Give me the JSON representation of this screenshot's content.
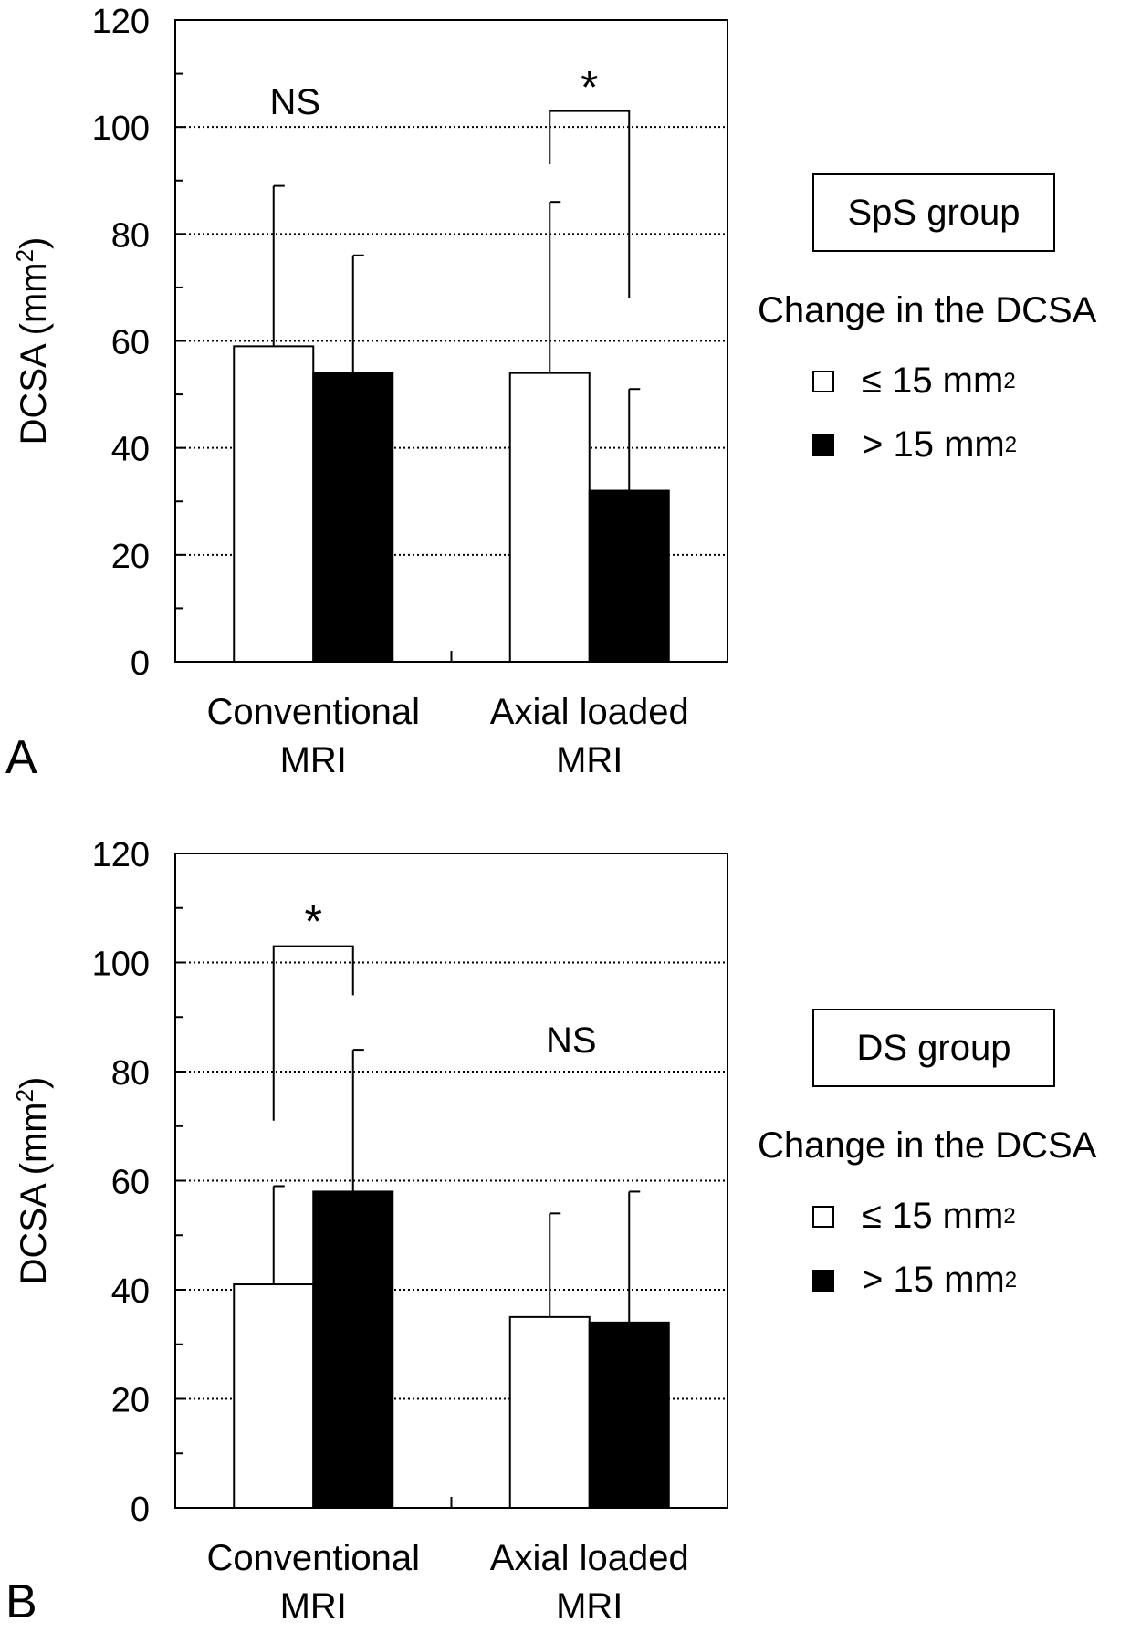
{
  "chart_data": [
    {
      "panel_label": "A",
      "type": "bar",
      "categories": [
        "Conventional MRI",
        "Axial loaded MRI"
      ],
      "category_lines": [
        [
          "Conventional",
          "MRI"
        ],
        [
          "Axial loaded",
          "MRI"
        ]
      ],
      "ylabel": "DCSA (mm²)",
      "ylabel_main": "DCSA (mm",
      "ylabel_sup": "2",
      "ylabel_end": ")",
      "ylim": [
        0,
        120
      ],
      "yticks": [
        0,
        20,
        40,
        60,
        80,
        100,
        120
      ],
      "grid": "dotted horizontal",
      "series": [
        {
          "name": "≤ 15 mm2",
          "color": "#ffffff",
          "values": [
            59,
            54
          ],
          "error": [
            30,
            32
          ]
        },
        {
          "name": "> 15 mm2",
          "color": "#000000",
          "values": [
            54,
            32
          ],
          "error": [
            22,
            19
          ]
        }
      ],
      "annotations": [
        {
          "category": 0,
          "text": "NS",
          "y": 105
        },
        {
          "category": 1,
          "text": "*",
          "y": 108,
          "bracket_y": 103,
          "left_end": 93,
          "right_end": 68
        }
      ],
      "legend": {
        "group": "SpS group",
        "title": "Change in the DCSA",
        "items": [
          {
            "label": "≤ 15 mm",
            "sup": "2",
            "color": "#ffffff"
          },
          {
            "label": "> 15 mm",
            "sup": "2",
            "color": "#000000"
          }
        ],
        "placement": "right"
      }
    },
    {
      "panel_label": "B",
      "type": "bar",
      "categories": [
        "Conventional MRI",
        "Axial loaded MRI"
      ],
      "category_lines": [
        [
          "Conventional",
          "MRI"
        ],
        [
          "Axial loaded",
          "MRI"
        ]
      ],
      "ylabel": "DCSA (mm²)",
      "ylabel_main": "DCSA (mm",
      "ylabel_sup": "2",
      "ylabel_end": ")",
      "ylim": [
        0,
        120
      ],
      "yticks": [
        0,
        20,
        40,
        60,
        80,
        100,
        120
      ],
      "grid": "dotted horizontal",
      "series": [
        {
          "name": "≤ 15 mm2",
          "color": "#ffffff",
          "values": [
            41,
            35
          ],
          "error": [
            18,
            19
          ]
        },
        {
          "name": "> 15 mm2",
          "color": "#000000",
          "values": [
            58,
            34
          ],
          "error": [
            26,
            24
          ]
        }
      ],
      "annotations": [
        {
          "category": 0,
          "text": "*",
          "y": 108,
          "bracket_y": 103,
          "left_end": 71,
          "right_end": 94
        },
        {
          "category": 1,
          "text": "NS",
          "y": 86
        }
      ],
      "legend": {
        "group": "DS group",
        "title": "Change in the DCSA",
        "items": [
          {
            "label": "≤ 15 mm",
            "sup": "2",
            "color": "#ffffff"
          },
          {
            "label": "> 15 mm",
            "sup": "2",
            "color": "#000000"
          }
        ],
        "placement": "right"
      }
    }
  ]
}
